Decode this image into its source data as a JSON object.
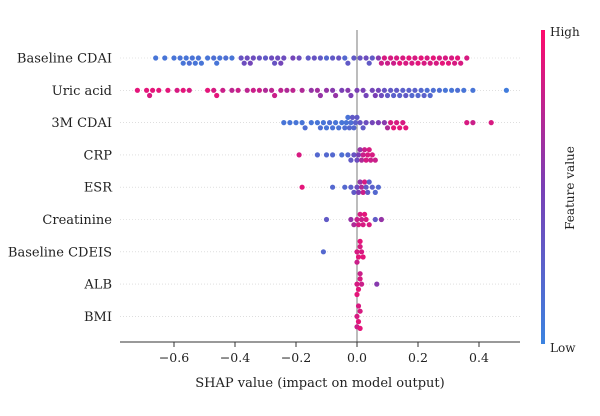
{
  "chart_data": {
    "type": "scatter",
    "subtype": "shap-beeswarm",
    "xlabel": "SHAP value (impact on model output)",
    "xticks": [
      -0.6,
      -0.4,
      -0.2,
      0.0,
      0.2,
      0.4
    ],
    "xtick_labels": [
      "−0.6",
      "−0.4",
      "−0.2",
      "0.0",
      "0.2",
      "0.4"
    ],
    "xlim": [
      -0.78,
      0.52
    ],
    "colorbar": {
      "label": "Feature value",
      "high_label": "High",
      "low_label": "Low",
      "low_color": "#3b83e0",
      "mid_color": "#7a3fb5",
      "high_color": "#ff0a6b"
    },
    "zero_line": true,
    "features": [
      {
        "name": "Baseline CDAI",
        "points": [
          [
            -0.66,
            0.1
          ],
          [
            -0.63,
            0.1
          ],
          [
            -0.6,
            0.1
          ],
          [
            -0.58,
            0.12
          ],
          [
            -0.57,
            0.1
          ],
          [
            -0.56,
            0.1
          ],
          [
            -0.55,
            0.15
          ],
          [
            -0.54,
            0.12
          ],
          [
            -0.53,
            0.1
          ],
          [
            -0.52,
            0.12
          ],
          [
            -0.51,
            0.1
          ],
          [
            -0.49,
            0.1
          ],
          [
            -0.47,
            0.15
          ],
          [
            -0.46,
            0.1
          ],
          [
            -0.45,
            0.12
          ],
          [
            -0.43,
            0.15
          ],
          [
            -0.41,
            0.1
          ],
          [
            -0.38,
            0.35
          ],
          [
            -0.37,
            0.4
          ],
          [
            -0.36,
            0.4
          ],
          [
            -0.35,
            0.45
          ],
          [
            -0.34,
            0.4
          ],
          [
            -0.32,
            0.35
          ],
          [
            -0.3,
            0.3
          ],
          [
            -0.28,
            0.4
          ],
          [
            -0.27,
            0.35
          ],
          [
            -0.26,
            0.4
          ],
          [
            -0.25,
            0.45
          ],
          [
            -0.24,
            0.4
          ],
          [
            -0.21,
            0.45
          ],
          [
            -0.19,
            0.4
          ],
          [
            -0.16,
            0.3
          ],
          [
            -0.14,
            0.35
          ],
          [
            -0.12,
            0.3
          ],
          [
            -0.1,
            0.2
          ],
          [
            -0.08,
            0.3
          ],
          [
            -0.06,
            0.35
          ],
          [
            -0.04,
            0.2
          ],
          [
            -0.03,
            0.3
          ],
          [
            -0.01,
            0.3
          ],
          [
            0.01,
            0.35
          ],
          [
            0.03,
            0.4
          ],
          [
            0.04,
            0.3
          ],
          [
            0.05,
            0.3
          ],
          [
            0.07,
            0.55
          ],
          [
            0.08,
            0.8
          ],
          [
            0.09,
            0.85
          ],
          [
            0.1,
            0.8
          ],
          [
            0.11,
            0.85
          ],
          [
            0.12,
            0.8
          ],
          [
            0.13,
            0.85
          ],
          [
            0.14,
            0.9
          ],
          [
            0.15,
            0.85
          ],
          [
            0.16,
            0.85
          ],
          [
            0.17,
            0.9
          ],
          [
            0.18,
            0.85
          ],
          [
            0.19,
            0.85
          ],
          [
            0.2,
            0.9
          ],
          [
            0.21,
            0.9
          ],
          [
            0.22,
            0.85
          ],
          [
            0.23,
            0.85
          ],
          [
            0.24,
            0.85
          ],
          [
            0.25,
            0.9
          ],
          [
            0.26,
            0.85
          ],
          [
            0.27,
            0.85
          ],
          [
            0.28,
            0.9
          ],
          [
            0.29,
            0.85
          ],
          [
            0.3,
            0.9
          ],
          [
            0.31,
            0.85
          ],
          [
            0.32,
            0.85
          ],
          [
            0.33,
            0.9
          ],
          [
            0.34,
            0.85
          ],
          [
            0.36,
            0.85
          ]
        ]
      },
      {
        "name": "Uric acid",
        "points": [
          [
            -0.72,
            0.9
          ],
          [
            -0.69,
            0.9
          ],
          [
            -0.68,
            0.85
          ],
          [
            -0.67,
            0.9
          ],
          [
            -0.65,
            0.9
          ],
          [
            -0.62,
            0.9
          ],
          [
            -0.59,
            0.85
          ],
          [
            -0.57,
            0.9
          ],
          [
            -0.55,
            0.85
          ],
          [
            -0.49,
            0.9
          ],
          [
            -0.47,
            0.85
          ],
          [
            -0.46,
            0.9
          ],
          [
            -0.44,
            0.8
          ],
          [
            -0.41,
            0.75
          ],
          [
            -0.39,
            0.8
          ],
          [
            -0.36,
            0.75
          ],
          [
            -0.34,
            0.8
          ],
          [
            -0.32,
            0.8
          ],
          [
            -0.3,
            0.7
          ],
          [
            -0.28,
            0.75
          ],
          [
            -0.27,
            0.8
          ],
          [
            -0.25,
            0.75
          ],
          [
            -0.23,
            0.7
          ],
          [
            -0.21,
            0.75
          ],
          [
            -0.18,
            0.7
          ],
          [
            -0.15,
            0.6
          ],
          [
            -0.13,
            0.65
          ],
          [
            -0.12,
            0.6
          ],
          [
            -0.1,
            0.6
          ],
          [
            -0.08,
            0.55
          ],
          [
            -0.07,
            0.6
          ],
          [
            -0.05,
            0.5
          ],
          [
            -0.03,
            0.55
          ],
          [
            -0.02,
            0.5
          ],
          [
            0.0,
            0.5
          ],
          [
            0.02,
            0.5
          ],
          [
            0.03,
            0.45
          ],
          [
            0.05,
            0.45
          ],
          [
            0.06,
            0.5
          ],
          [
            0.07,
            0.45
          ],
          [
            0.08,
            0.4
          ],
          [
            0.09,
            0.35
          ],
          [
            0.1,
            0.3
          ],
          [
            0.11,
            0.3
          ],
          [
            0.12,
            0.25
          ],
          [
            0.13,
            0.3
          ],
          [
            0.14,
            0.25
          ],
          [
            0.15,
            0.25
          ],
          [
            0.16,
            0.3
          ],
          [
            0.17,
            0.25
          ],
          [
            0.18,
            0.2
          ],
          [
            0.19,
            0.25
          ],
          [
            0.2,
            0.2
          ],
          [
            0.21,
            0.2
          ],
          [
            0.22,
            0.25
          ],
          [
            0.23,
            0.15
          ],
          [
            0.24,
            0.2
          ],
          [
            0.25,
            0.15
          ],
          [
            0.27,
            0.15
          ],
          [
            0.29,
            0.1
          ],
          [
            0.31,
            0.1
          ],
          [
            0.33,
            0.15
          ],
          [
            0.35,
            0.1
          ],
          [
            0.38,
            0.1
          ],
          [
            0.49,
            0.05
          ]
        ]
      },
      {
        "name": "3M CDAI",
        "points": [
          [
            -0.24,
            0.1
          ],
          [
            -0.22,
            0.1
          ],
          [
            -0.2,
            0.1
          ],
          [
            -0.18,
            0.1
          ],
          [
            -0.17,
            0.15
          ],
          [
            -0.15,
            0.1
          ],
          [
            -0.13,
            0.1
          ],
          [
            -0.12,
            0.15
          ],
          [
            -0.11,
            0.1
          ],
          [
            -0.1,
            0.1
          ],
          [
            -0.09,
            0.15
          ],
          [
            -0.08,
            0.12
          ],
          [
            -0.07,
            0.1
          ],
          [
            -0.06,
            0.12
          ],
          [
            -0.05,
            0.1
          ],
          [
            -0.04,
            0.15
          ],
          [
            -0.035,
            0.1
          ],
          [
            -0.03,
            0.12
          ],
          [
            -0.025,
            0.2
          ],
          [
            -0.02,
            0.15
          ],
          [
            -0.015,
            0.3
          ],
          [
            -0.01,
            0.2
          ],
          [
            -0.005,
            0.25
          ],
          [
            0.0,
            0.3
          ],
          [
            0.01,
            0.35
          ],
          [
            0.02,
            0.3
          ],
          [
            0.03,
            0.4
          ],
          [
            0.05,
            0.45
          ],
          [
            0.07,
            0.5
          ],
          [
            0.09,
            0.55
          ],
          [
            0.1,
            0.7
          ],
          [
            0.11,
            0.85
          ],
          [
            0.12,
            0.9
          ],
          [
            0.13,
            0.85
          ],
          [
            0.14,
            0.9
          ],
          [
            0.15,
            0.85
          ],
          [
            0.16,
            0.9
          ],
          [
            0.36,
            0.85
          ],
          [
            0.38,
            0.8
          ],
          [
            0.44,
            0.85
          ]
        ]
      },
      {
        "name": "CRP",
        "points": [
          [
            -0.19,
            0.85
          ],
          [
            -0.13,
            0.2
          ],
          [
            -0.1,
            0.2
          ],
          [
            -0.08,
            0.2
          ],
          [
            -0.05,
            0.15
          ],
          [
            -0.03,
            0.2
          ],
          [
            -0.02,
            0.3
          ],
          [
            -0.01,
            0.35
          ],
          [
            0.0,
            0.4
          ],
          [
            0.005,
            0.5
          ],
          [
            0.01,
            0.6
          ],
          [
            0.015,
            0.7
          ],
          [
            0.02,
            0.8
          ],
          [
            0.025,
            0.8
          ],
          [
            0.03,
            0.85
          ],
          [
            0.035,
            0.85
          ],
          [
            0.04,
            0.85
          ],
          [
            0.045,
            0.8
          ],
          [
            0.05,
            0.85
          ],
          [
            0.06,
            0.8
          ]
        ]
      },
      {
        "name": "ESR",
        "points": [
          [
            -0.18,
            0.9
          ],
          [
            -0.08,
            0.2
          ],
          [
            -0.04,
            0.2
          ],
          [
            -0.02,
            0.25
          ],
          [
            -0.01,
            0.3
          ],
          [
            0.0,
            0.4
          ],
          [
            0.005,
            0.5
          ],
          [
            0.01,
            0.6
          ],
          [
            0.015,
            0.7
          ],
          [
            0.02,
            0.8
          ],
          [
            0.025,
            0.85
          ],
          [
            0.03,
            0.3
          ],
          [
            0.035,
            0.3
          ],
          [
            0.04,
            0.25
          ],
          [
            0.05,
            0.25
          ],
          [
            0.06,
            0.2
          ],
          [
            0.07,
            0.2
          ]
        ]
      },
      {
        "name": "Creatinine",
        "points": [
          [
            -0.1,
            0.3
          ],
          [
            -0.02,
            0.6
          ],
          [
            -0.01,
            0.7
          ],
          [
            0.0,
            0.8
          ],
          [
            0.005,
            0.85
          ],
          [
            0.01,
            0.85
          ],
          [
            0.015,
            0.8
          ],
          [
            0.02,
            0.85
          ],
          [
            0.025,
            0.9
          ],
          [
            0.03,
            0.85
          ],
          [
            0.04,
            0.85
          ],
          [
            0.06,
            0.3
          ],
          [
            0.08,
            0.6
          ]
        ]
      },
      {
        "name": "Baseline CDEIS",
        "points": [
          [
            -0.11,
            0.2
          ],
          [
            0.0,
            0.85
          ],
          [
            0.005,
            0.9
          ],
          [
            0.01,
            0.85
          ],
          [
            0.015,
            0.85
          ],
          [
            0.02,
            0.9
          ],
          [
            0.0,
            0.8
          ],
          [
            0.01,
            0.9
          ]
        ]
      },
      {
        "name": "ALB",
        "points": [
          [
            0.0,
            0.85
          ],
          [
            0.005,
            0.9
          ],
          [
            0.01,
            0.85
          ],
          [
            0.015,
            0.8
          ],
          [
            0.0,
            0.9
          ],
          [
            0.01,
            0.8
          ],
          [
            0.065,
            0.55
          ]
        ]
      },
      {
        "name": "BMI",
        "points": [
          [
            0.0,
            0.85
          ],
          [
            0.005,
            0.9
          ],
          [
            0.01,
            0.85
          ],
          [
            0.0,
            0.8
          ],
          [
            0.005,
            0.85
          ],
          [
            0.01,
            0.9
          ]
        ]
      }
    ]
  }
}
